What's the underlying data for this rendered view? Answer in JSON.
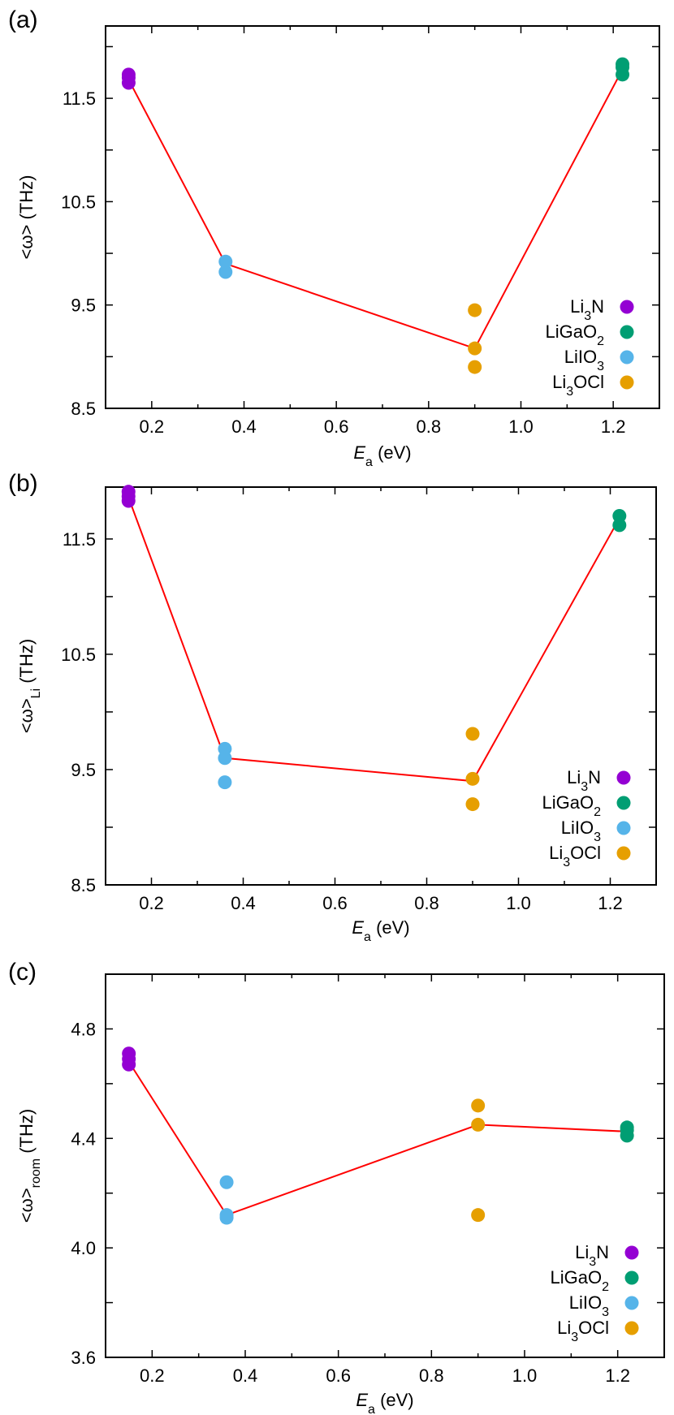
{
  "chart_data": [
    {
      "type": "scatter",
      "panel_label": "(a)",
      "xlabel": "E",
      "xlabel_sub": "a",
      "xlabel_unit": " (eV)",
      "ylabel": "<ω> (THz)",
      "ylabel_sub": "",
      "ylabel_tail": "",
      "xlim": [
        0.1,
        1.3
      ],
      "ylim": [
        8.5,
        12.2
      ],
      "xticks": [
        0.2,
        0.4,
        0.6,
        0.8,
        1.0,
        1.2
      ],
      "xtick_labels": [
        "0.2",
        "0.4",
        "0.6",
        "0.8",
        "1.0",
        "1.2"
      ],
      "yticks_major": [
        8.5,
        9.5,
        10.5,
        11.5
      ],
      "ytick_labels": [
        "8.5",
        "9.5",
        "10.5",
        "11.5"
      ],
      "yticks_minor": [
        9.0,
        10.0,
        11.0,
        12.0
      ],
      "legend_position": "bottom-right",
      "series": [
        {
          "name": "Li3N",
          "label_parts": [
            "Li",
            "3",
            "N",
            ""
          ],
          "color": "#9400d3",
          "x": [
            0.15,
            0.15,
            0.15
          ],
          "y": [
            11.73,
            11.7,
            11.65
          ]
        },
        {
          "name": "LiGaO2",
          "label_parts": [
            "LiGaO",
            "2",
            "",
            ""
          ],
          "color": "#009e73",
          "x": [
            1.22,
            1.22,
            1.22
          ],
          "y": [
            11.83,
            11.8,
            11.73
          ]
        },
        {
          "name": "LiIO3",
          "label_parts": [
            "LiIO",
            "3",
            "",
            ""
          ],
          "color": "#56b4e9",
          "x": [
            0.36,
            0.36
          ],
          "y": [
            9.92,
            9.82
          ]
        },
        {
          "name": "Li3OCl",
          "label_parts": [
            "Li",
            "3",
            "OCl",
            ""
          ],
          "color": "#e69f00",
          "x": [
            0.9,
            0.9,
            0.9
          ],
          "y": [
            9.45,
            9.08,
            8.9
          ]
        }
      ],
      "fit_line": {
        "color": "#ff0000",
        "x": [
          0.15,
          0.36,
          0.9,
          1.22
        ],
        "y": [
          11.68,
          9.9,
          9.08,
          11.78
        ]
      }
    },
    {
      "type": "scatter",
      "panel_label": "(b)",
      "xlabel": "E",
      "xlabel_sub": "a",
      "xlabel_unit": " (eV)",
      "ylabel": "<ω>",
      "ylabel_sub": "Li",
      "ylabel_tail": " (THz)",
      "xlim": [
        0.1,
        1.3
      ],
      "ylim": [
        8.5,
        11.95
      ],
      "xticks": [
        0.2,
        0.4,
        0.6,
        0.8,
        1.0,
        1.2
      ],
      "xtick_labels": [
        "0.2",
        "0.4",
        "0.6",
        "0.8",
        "1.0",
        "1.2"
      ],
      "yticks_major": [
        8.5,
        9.5,
        10.5,
        11.5
      ],
      "ytick_labels": [
        "8.5",
        "9.5",
        "10.5",
        "11.5"
      ],
      "yticks_minor": [
        9.0,
        10.0,
        11.0
      ],
      "legend_position": "bottom-right",
      "series": [
        {
          "name": "Li3N",
          "label_parts": [
            "Li",
            "3",
            "N",
            ""
          ],
          "color": "#9400d3",
          "x": [
            0.15,
            0.15,
            0.15
          ],
          "y": [
            11.91,
            11.87,
            11.83
          ]
        },
        {
          "name": "LiGaO2",
          "label_parts": [
            "LiGaO",
            "2",
            "",
            ""
          ],
          "color": "#009e73",
          "x": [
            1.22,
            1.22
          ],
          "y": [
            11.7,
            11.62
          ]
        },
        {
          "name": "LiIO3",
          "label_parts": [
            "LiIO",
            "3",
            "",
            ""
          ],
          "color": "#56b4e9",
          "x": [
            0.36,
            0.36,
            0.36
          ],
          "y": [
            9.68,
            9.6,
            9.39
          ]
        },
        {
          "name": "Li3OCl",
          "label_parts": [
            "Li",
            "3",
            "OCl",
            ""
          ],
          "color": "#e69f00",
          "x": [
            0.9,
            0.9,
            0.9
          ],
          "y": [
            9.81,
            9.42,
            9.2
          ]
        }
      ],
      "fit_line": {
        "color": "#ff0000",
        "x": [
          0.15,
          0.36,
          0.9,
          1.22
        ],
        "y": [
          11.86,
          9.6,
          9.4,
          11.68
        ]
      }
    },
    {
      "type": "scatter",
      "panel_label": "(c)",
      "xlabel": "E",
      "xlabel_sub": "a",
      "xlabel_unit": " (eV)",
      "ylabel": "<ω>",
      "ylabel_sub": "room",
      "ylabel_tail": " (THz)",
      "xlim": [
        0.1,
        1.3
      ],
      "ylim": [
        3.6,
        5.0
      ],
      "xticks": [
        0.2,
        0.4,
        0.6,
        0.8,
        1.0,
        1.2
      ],
      "xtick_labels": [
        "0.2",
        "0.4",
        "0.6",
        "0.8",
        "1.0",
        "1.2"
      ],
      "yticks_major": [
        3.6,
        4.0,
        4.4,
        4.8
      ],
      "ytick_labels": [
        "3.6",
        "4.0",
        "4.4",
        "4.8"
      ],
      "yticks_minor": [
        3.8,
        4.2,
        4.6
      ],
      "legend_position": "bottom-right",
      "series": [
        {
          "name": "Li3N",
          "label_parts": [
            "Li",
            "3",
            "N",
            ""
          ],
          "color": "#9400d3",
          "x": [
            0.15,
            0.15,
            0.15
          ],
          "y": [
            4.71,
            4.69,
            4.67
          ]
        },
        {
          "name": "LiGaO2",
          "label_parts": [
            "LiGaO",
            "2",
            "",
            ""
          ],
          "color": "#009e73",
          "x": [
            1.22,
            1.22,
            1.22
          ],
          "y": [
            4.44,
            4.43,
            4.41
          ]
        },
        {
          "name": "LiIO3",
          "label_parts": [
            "LiIO",
            "3",
            "",
            ""
          ],
          "color": "#56b4e9",
          "x": [
            0.36,
            0.36,
            0.36
          ],
          "y": [
            4.24,
            4.12,
            4.11
          ]
        },
        {
          "name": "Li3OCl",
          "label_parts": [
            "Li",
            "3",
            "OCl",
            ""
          ],
          "color": "#e69f00",
          "x": [
            0.9,
            0.9,
            0.9
          ],
          "y": [
            4.52,
            4.45,
            4.12
          ]
        }
      ],
      "fit_line": {
        "color": "#ff0000",
        "x": [
          0.15,
          0.36,
          0.9,
          1.22
        ],
        "y": [
          4.68,
          4.12,
          4.45,
          4.425
        ]
      }
    }
  ]
}
